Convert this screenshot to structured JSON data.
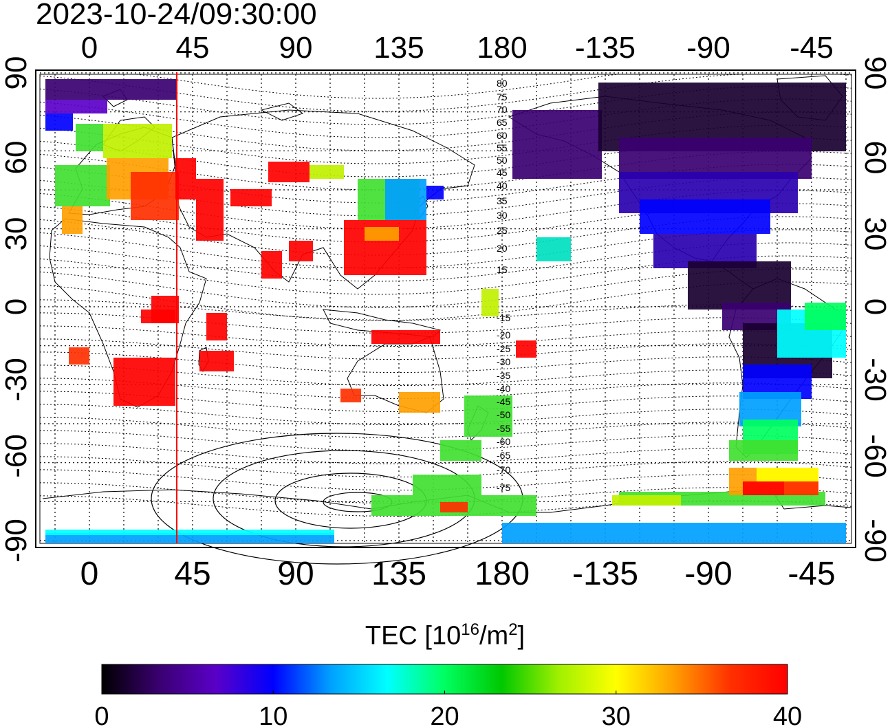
{
  "timestamp": "2023-10-24/09:30:00",
  "colorbar": {
    "label_prefix": "TEC  [10",
    "label_exp1": "16",
    "label_mid": "/m",
    "label_exp2": "2",
    "label_suffix": "]",
    "ticks": [
      "0",
      "10",
      "20",
      "30",
      "40"
    ],
    "range": [
      0,
      40
    ],
    "colors": [
      "#000000",
      "#3a0070",
      "#5a00c8",
      "#0000ff",
      "#00a0ff",
      "#00ffff",
      "#00ff60",
      "#00c800",
      "#a0f000",
      "#ffff00",
      "#ffa000",
      "#ff3000",
      "#ff0000"
    ]
  },
  "map": {
    "top_lon_labels": [
      "0",
      "45",
      "90",
      "135",
      "180",
      "-135",
      "-90",
      "-45"
    ],
    "bottom_lon_labels": [
      "0",
      "45",
      "90",
      "135",
      "180",
      "-135",
      "-90",
      "-45"
    ],
    "left_lat_labels": [
      "90",
      "60",
      "30",
      "0",
      "-30",
      "-60",
      "-90"
    ],
    "right_lat_labels": [
      "90",
      "60",
      "30",
      "0",
      "-30",
      "-60",
      "-90"
    ],
    "contour_labels_north": [
      "80",
      "75",
      "70",
      "65",
      "60",
      "55",
      "50",
      "45",
      "40",
      "35",
      "30",
      "25",
      "20",
      "15"
    ],
    "contour_labels_south": [
      "-15",
      "-20",
      "-25",
      "-30",
      "-35",
      "-40",
      "-45",
      "-50",
      "-55",
      "-60",
      "-65",
      "-70",
      "-75"
    ],
    "subsolar_longitude": 37,
    "border_color": "#000000",
    "marker_color": "#ff0000"
  }
}
